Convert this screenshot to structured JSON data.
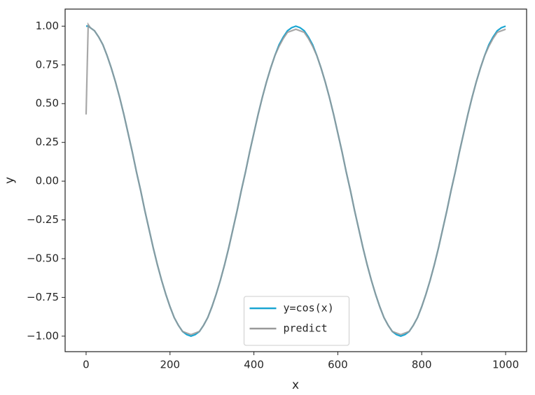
{
  "chart_data": {
    "type": "line",
    "xlabel": "x",
    "ylabel": "y",
    "x": [
      0,
      5,
      10,
      20,
      30,
      40,
      50,
      60,
      70,
      80,
      90,
      100,
      110,
      120,
      130,
      140,
      150,
      160,
      170,
      180,
      190,
      200,
      210,
      220,
      230,
      240,
      250,
      260,
      270,
      280,
      290,
      300,
      310,
      320,
      330,
      340,
      350,
      360,
      370,
      380,
      390,
      400,
      410,
      420,
      430,
      440,
      450,
      460,
      470,
      480,
      490,
      500,
      510,
      520,
      530,
      540,
      550,
      560,
      570,
      580,
      590,
      600,
      610,
      620,
      630,
      640,
      650,
      660,
      670,
      680,
      690,
      700,
      710,
      720,
      730,
      740,
      750,
      760,
      770,
      780,
      790,
      800,
      810,
      820,
      830,
      840,
      850,
      860,
      870,
      880,
      890,
      900,
      910,
      920,
      930,
      940,
      950,
      960,
      970,
      980,
      990,
      1000
    ],
    "series": [
      {
        "name": "y=cos(x)",
        "color": "#1ba6d2",
        "values": [
          1,
          1,
          0.99,
          0.97,
          0.93,
          0.88,
          0.81,
          0.73,
          0.64,
          0.54,
          0.43,
          0.31,
          0.19,
          0.06,
          -0.06,
          -0.19,
          -0.31,
          -0.43,
          -0.54,
          -0.64,
          -0.73,
          -0.81,
          -0.88,
          -0.93,
          -0.97,
          -0.99,
          -1,
          -0.99,
          -0.97,
          -0.93,
          -0.88,
          -0.81,
          -0.73,
          -0.64,
          -0.54,
          -0.43,
          -0.31,
          -0.19,
          -0.06,
          0.06,
          0.19,
          0.31,
          0.43,
          0.54,
          0.64,
          0.73,
          0.81,
          0.88,
          0.93,
          0.97,
          0.99,
          1,
          0.99,
          0.97,
          0.93,
          0.88,
          0.81,
          0.73,
          0.64,
          0.54,
          0.43,
          0.31,
          0.19,
          0.06,
          -0.06,
          -0.19,
          -0.31,
          -0.43,
          -0.54,
          -0.64,
          -0.73,
          -0.81,
          -0.88,
          -0.93,
          -0.97,
          -0.99,
          -1,
          -0.99,
          -0.97,
          -0.93,
          -0.88,
          -0.81,
          -0.73,
          -0.64,
          -0.54,
          -0.43,
          -0.31,
          -0.19,
          -0.06,
          0.06,
          0.19,
          0.31,
          0.43,
          0.54,
          0.64,
          0.73,
          0.81,
          0.88,
          0.93,
          0.97,
          0.99,
          1
        ]
      },
      {
        "name": "predict",
        "color": "#999999",
        "values": [
          0.43,
          1.01,
          0.99,
          0.97,
          0.93,
          0.88,
          0.81,
          0.73,
          0.64,
          0.54,
          0.43,
          0.31,
          0.19,
          0.06,
          -0.06,
          -0.19,
          -0.31,
          -0.43,
          -0.54,
          -0.64,
          -0.73,
          -0.81,
          -0.88,
          -0.93,
          -0.97,
          -0.98,
          -0.99,
          -0.98,
          -0.97,
          -0.93,
          -0.88,
          -0.81,
          -0.73,
          -0.64,
          -0.54,
          -0.43,
          -0.31,
          -0.19,
          -0.06,
          0.06,
          0.19,
          0.31,
          0.43,
          0.54,
          0.64,
          0.73,
          0.81,
          0.87,
          0.92,
          0.96,
          0.97,
          0.98,
          0.97,
          0.96,
          0.92,
          0.87,
          0.81,
          0.73,
          0.64,
          0.54,
          0.43,
          0.31,
          0.19,
          0.06,
          -0.06,
          -0.19,
          -0.31,
          -0.43,
          -0.54,
          -0.64,
          -0.73,
          -0.81,
          -0.88,
          -0.93,
          -0.97,
          -0.98,
          -0.99,
          -0.98,
          -0.97,
          -0.93,
          -0.88,
          -0.81,
          -0.73,
          -0.64,
          -0.54,
          -0.43,
          -0.31,
          -0.19,
          -0.06,
          0.06,
          0.19,
          0.31,
          0.43,
          0.54,
          0.64,
          0.73,
          0.81,
          0.87,
          0.92,
          0.96,
          0.97,
          0.98
        ]
      }
    ],
    "xlim": [
      -50,
      1050
    ],
    "ylim": [
      -1.1,
      1.11
    ],
    "xticks": [
      0,
      200,
      400,
      600,
      800,
      1000
    ],
    "yticks": [
      {
        "value": 1,
        "label": "1.00"
      },
      {
        "value": 0.75,
        "label": "0.75"
      },
      {
        "value": 0.5,
        "label": "0.50"
      },
      {
        "value": 0.25,
        "label": "0.25"
      },
      {
        "value": 0,
        "label": "0.00"
      },
      {
        "value": -0.25,
        "label": "−0.25"
      },
      {
        "value": -0.5,
        "label": "−0.50"
      },
      {
        "value": -0.75,
        "label": "−0.75"
      },
      {
        "value": -1,
        "label": "−1.00"
      }
    ],
    "grid": false,
    "legend": "lower center"
  }
}
